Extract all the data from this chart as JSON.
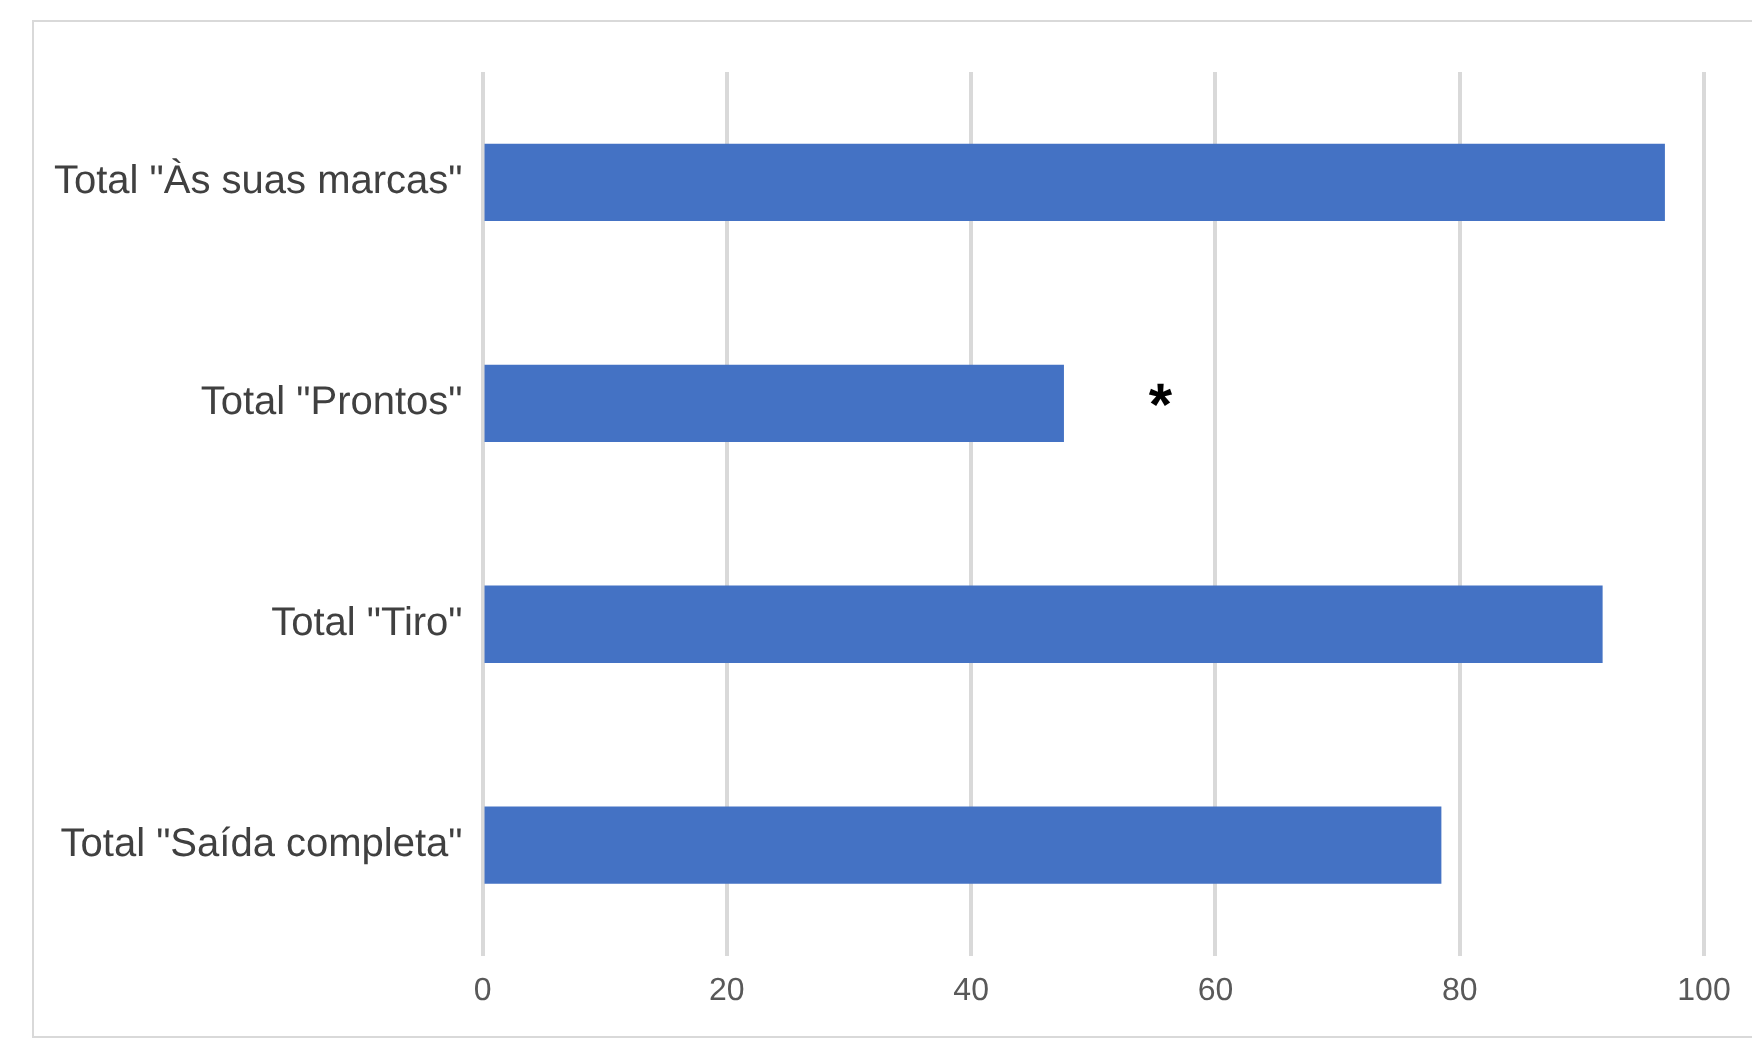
{
  "chart_data": {
    "type": "bar",
    "orientation": "horizontal",
    "categories": [
      "Total \"Às suas marcas\"",
      "Total \"Prontos\"",
      "Total \"Tiro\"",
      "Total \"Saída completa\""
    ],
    "values": [
      96.8,
      47.6,
      91.7,
      78.5
    ],
    "color": "#4472c4",
    "xlim": [
      0,
      100
    ],
    "xticks": [
      0,
      20,
      40,
      60,
      80,
      100
    ],
    "grid": "x",
    "legend": false,
    "annotations": [
      "*"
    ]
  }
}
